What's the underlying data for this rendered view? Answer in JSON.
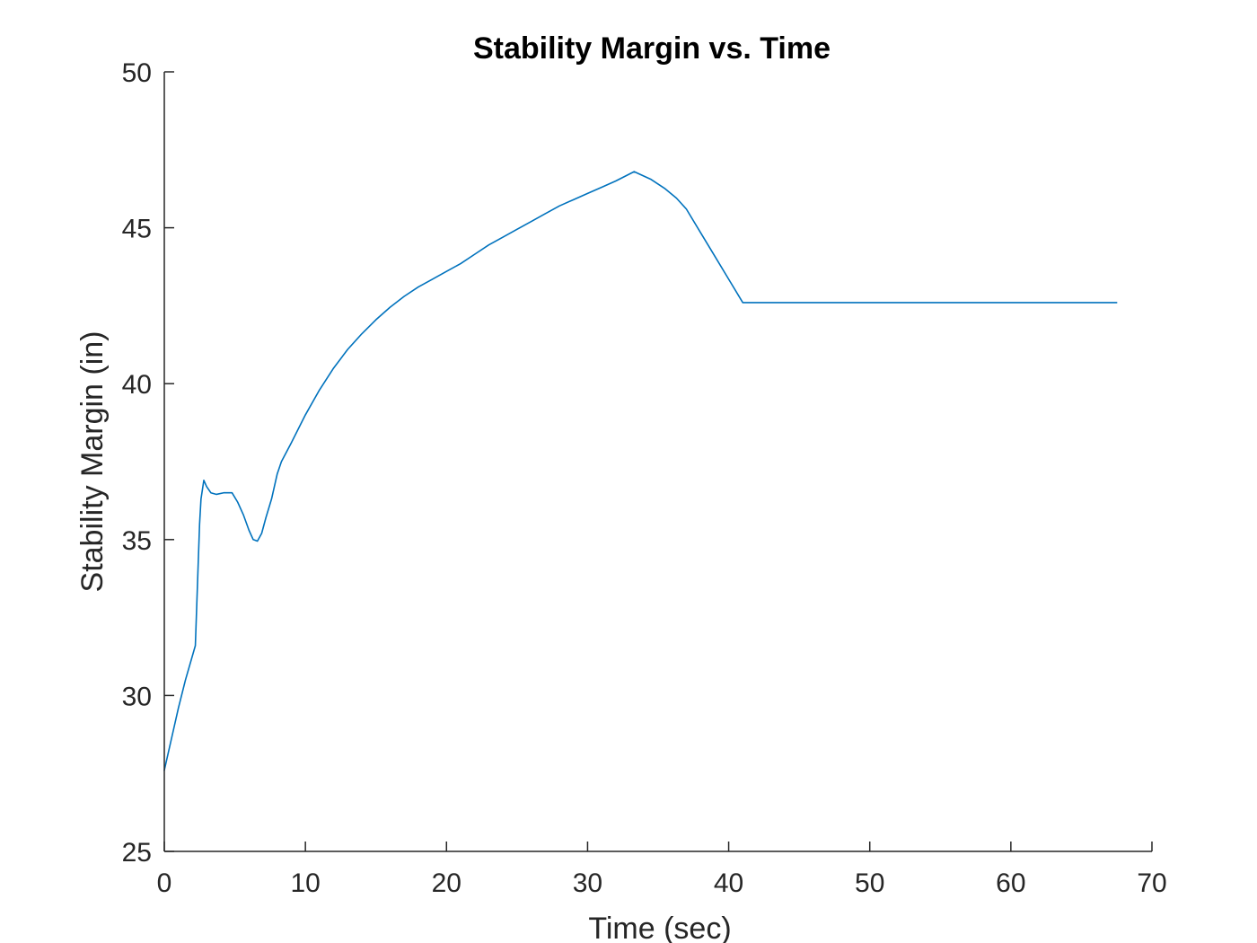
{
  "chart_data": {
    "type": "line",
    "title": "Stability Margin vs. Time",
    "xlabel": "Time (sec)",
    "ylabel": "Stability Margin (in)",
    "xlim": [
      0,
      70
    ],
    "ylim": [
      25,
      50
    ],
    "xticks": [
      0,
      10,
      20,
      30,
      40,
      50,
      60,
      70
    ],
    "yticks": [
      25,
      30,
      35,
      40,
      45,
      50
    ],
    "grid": false,
    "series": [
      {
        "color": "#0072BD",
        "x": [
          0,
          0.5,
          1.0,
          1.5,
          2.2,
          2.5,
          2.6,
          2.8,
          3.0,
          3.3,
          3.7,
          4.2,
          4.8,
          5.2,
          5.6,
          6.0,
          6.3,
          6.6,
          6.9,
          7.2,
          7.6,
          8.0,
          8.3,
          9.0,
          10.0,
          11.0,
          12.0,
          13.0,
          14.0,
          15.0,
          16.0,
          17.0,
          18.0,
          19.0,
          20.0,
          21.0,
          22.0,
          23.0,
          24.0,
          25.0,
          26.0,
          27.0,
          28.0,
          29.0,
          30.0,
          31.0,
          32.0,
          33.3,
          34.5,
          35.5,
          36.3,
          37.0,
          38.0,
          39.0,
          40.0,
          41.0,
          41.2,
          45.0,
          50.0,
          55.0,
          60.0,
          65.0,
          67.5
        ],
        "y": [
          27.6,
          28.6,
          29.6,
          30.5,
          31.6,
          35.5,
          36.3,
          36.9,
          36.7,
          36.5,
          36.45,
          36.5,
          36.5,
          36.2,
          35.8,
          35.3,
          35.0,
          34.95,
          35.2,
          35.7,
          36.3,
          37.1,
          37.5,
          38.1,
          39.0,
          39.8,
          40.5,
          41.1,
          41.6,
          42.05,
          42.45,
          42.8,
          43.1,
          43.35,
          43.6,
          43.85,
          44.15,
          44.45,
          44.7,
          44.95,
          45.2,
          45.45,
          45.7,
          45.9,
          46.1,
          46.3,
          46.5,
          46.8,
          46.55,
          46.25,
          45.95,
          45.6,
          44.85,
          44.1,
          43.35,
          42.6,
          42.6,
          42.6,
          42.6,
          42.6,
          42.6,
          42.6,
          42.6
        ]
      }
    ]
  }
}
